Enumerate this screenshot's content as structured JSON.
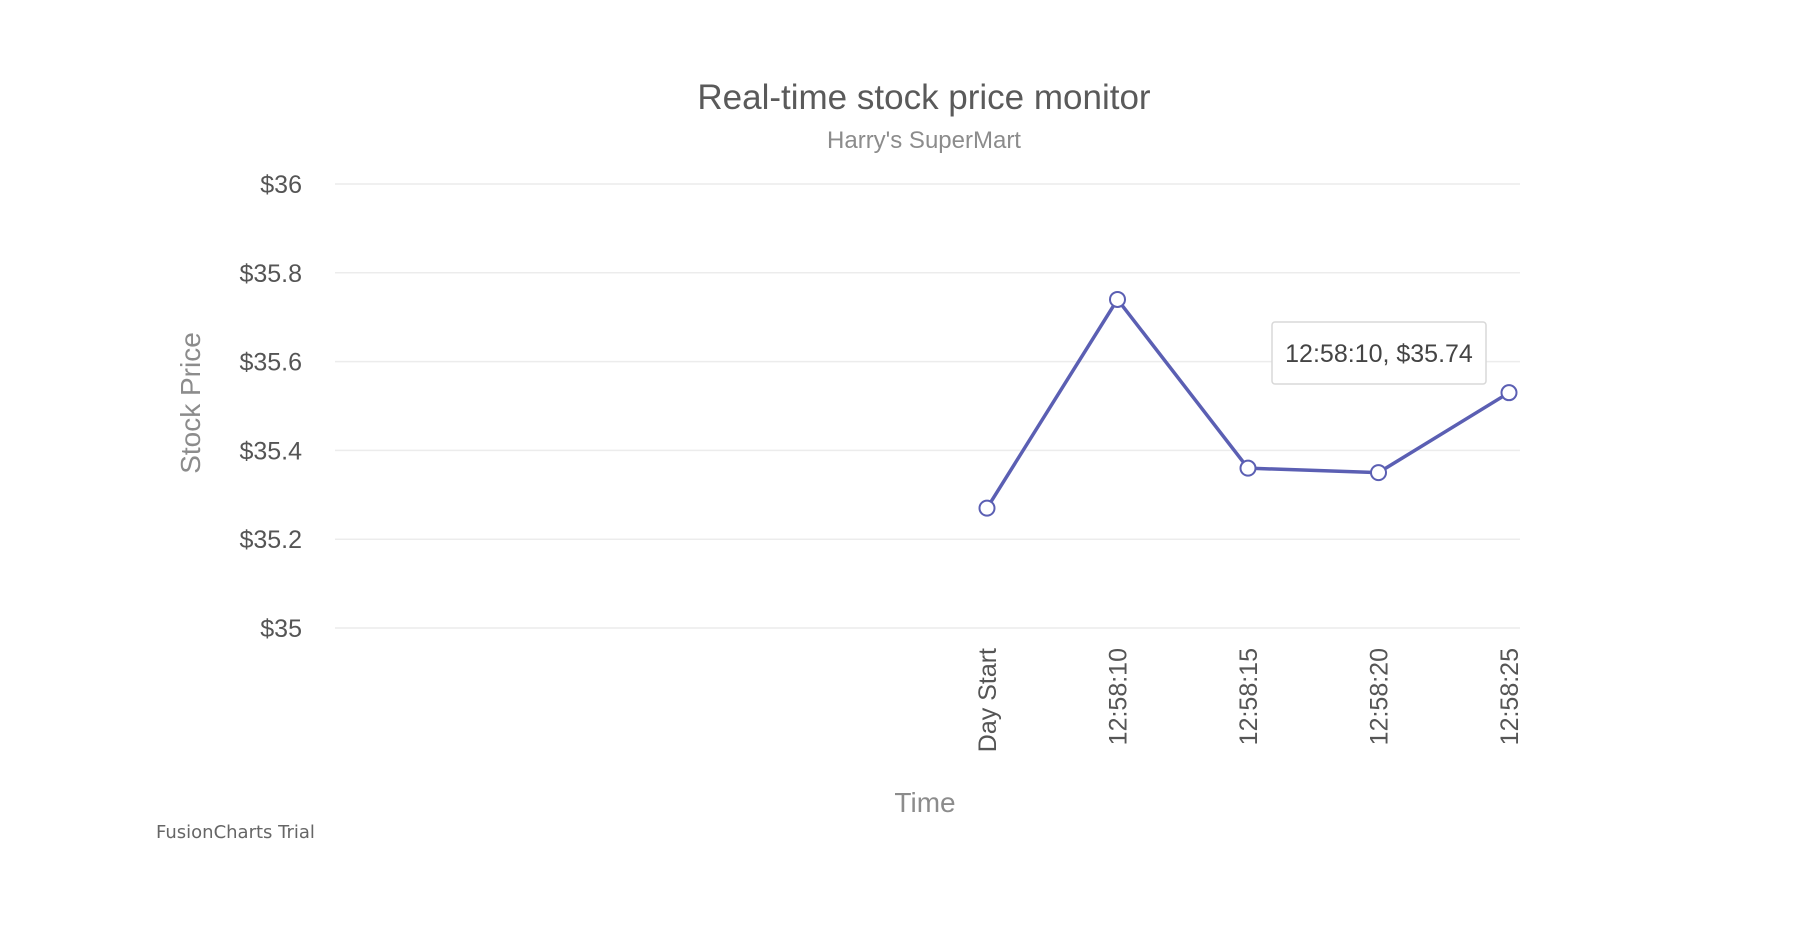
{
  "chart_data": {
    "type": "line",
    "title": "Real-time stock price monitor",
    "subtitle": "Harry's SuperMart",
    "xlabel": "Time",
    "ylabel": "Stock Price",
    "categories": [
      "Day Start",
      "12:58:10",
      "12:58:15",
      "12:58:20",
      "12:58:25"
    ],
    "series": [
      {
        "values": [
          35.27,
          35.74,
          35.36,
          35.35,
          35.53
        ],
        "color": "#5b5fb3"
      }
    ],
    "ylim": [
      35,
      36
    ],
    "yticks": [
      36,
      35.8,
      35.6,
      35.4,
      35.2,
      35
    ],
    "ytick_labels": [
      "$36",
      "$35.8",
      "$35.6",
      "$35.4",
      "$35.2",
      "$35"
    ],
    "grid": true,
    "tooltip": {
      "text": "12:58:10, $35.74"
    }
  },
  "watermark": "FusionCharts Trial"
}
